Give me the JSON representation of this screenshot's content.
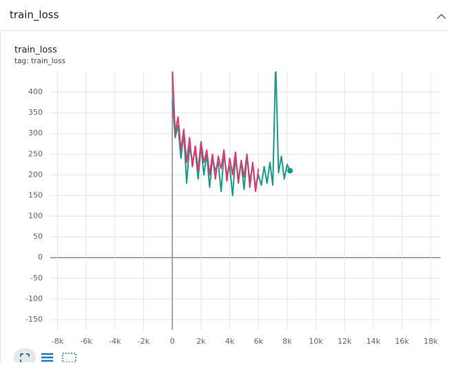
{
  "header": {
    "title": "train_loss"
  },
  "chart_data": {
    "type": "line",
    "title": "train_loss",
    "subtitle": "tag: train_loss",
    "xlim": [
      -8500,
      18700
    ],
    "ylim": [
      -175,
      450
    ],
    "xticks": [
      {
        "value": -8000,
        "label": "-8k"
      },
      {
        "value": -6000,
        "label": "-6k"
      },
      {
        "value": -4000,
        "label": "-4k"
      },
      {
        "value": -2000,
        "label": "-2k"
      },
      0,
      {
        "value": 2000,
        "label": "2k"
      },
      {
        "value": 4000,
        "label": "4k"
      },
      {
        "value": 6000,
        "label": "6k"
      },
      {
        "value": 8000,
        "label": "8k"
      },
      {
        "value": 10000,
        "label": "10k"
      },
      {
        "value": 12000,
        "label": "12k"
      },
      {
        "value": 14000,
        "label": "14k"
      },
      {
        "value": 16000,
        "label": "16k"
      },
      {
        "value": 18000,
        "label": "18k"
      }
    ],
    "yticks": [
      -150,
      -100,
      -50,
      0,
      50,
      100,
      150,
      200,
      250,
      300,
      350,
      400
    ],
    "grid": true,
    "series": [
      {
        "color": "#129e86",
        "x": [
          0,
          200,
          400,
          600,
          800,
          1000,
          1200,
          1400,
          1600,
          1800,
          2000,
          2200,
          2400,
          2600,
          2800,
          3000,
          3200,
          3400,
          3600,
          3800,
          4000,
          4200,
          4400,
          4600,
          4800,
          5000,
          5200,
          5400,
          5600,
          5800,
          6000,
          6200,
          6400,
          6600,
          6800,
          7000,
          7200,
          7400,
          7600,
          7800,
          8000,
          8200
        ],
        "values": [
          380,
          290,
          320,
          240,
          300,
          180,
          270,
          230,
          260,
          190,
          270,
          200,
          250,
          170,
          240,
          210,
          230,
          160,
          250,
          200,
          220,
          150,
          240,
          190,
          230,
          165,
          245,
          185,
          225,
          170,
          200,
          175,
          220,
          180,
          230,
          175,
          470,
          205,
          245,
          190,
          225,
          210
        ]
      },
      {
        "color": "#e8336d",
        "x": [
          0,
          200,
          400,
          600,
          800,
          1000,
          1200,
          1400,
          1600,
          1800,
          2000,
          2200,
          2400,
          2600,
          2800,
          3000,
          3200,
          3400,
          3600,
          3800,
          4000,
          4200,
          4400,
          4600,
          4800,
          5000,
          5200,
          5400,
          5600,
          5800,
          6000
        ],
        "values": [
          460,
          300,
          340,
          260,
          310,
          230,
          290,
          220,
          270,
          210,
          280,
          230,
          260,
          200,
          250,
          190,
          245,
          215,
          260,
          185,
          240,
          200,
          255,
          180,
          235,
          195,
          250,
          170,
          230,
          160,
          215
        ]
      }
    ]
  }
}
